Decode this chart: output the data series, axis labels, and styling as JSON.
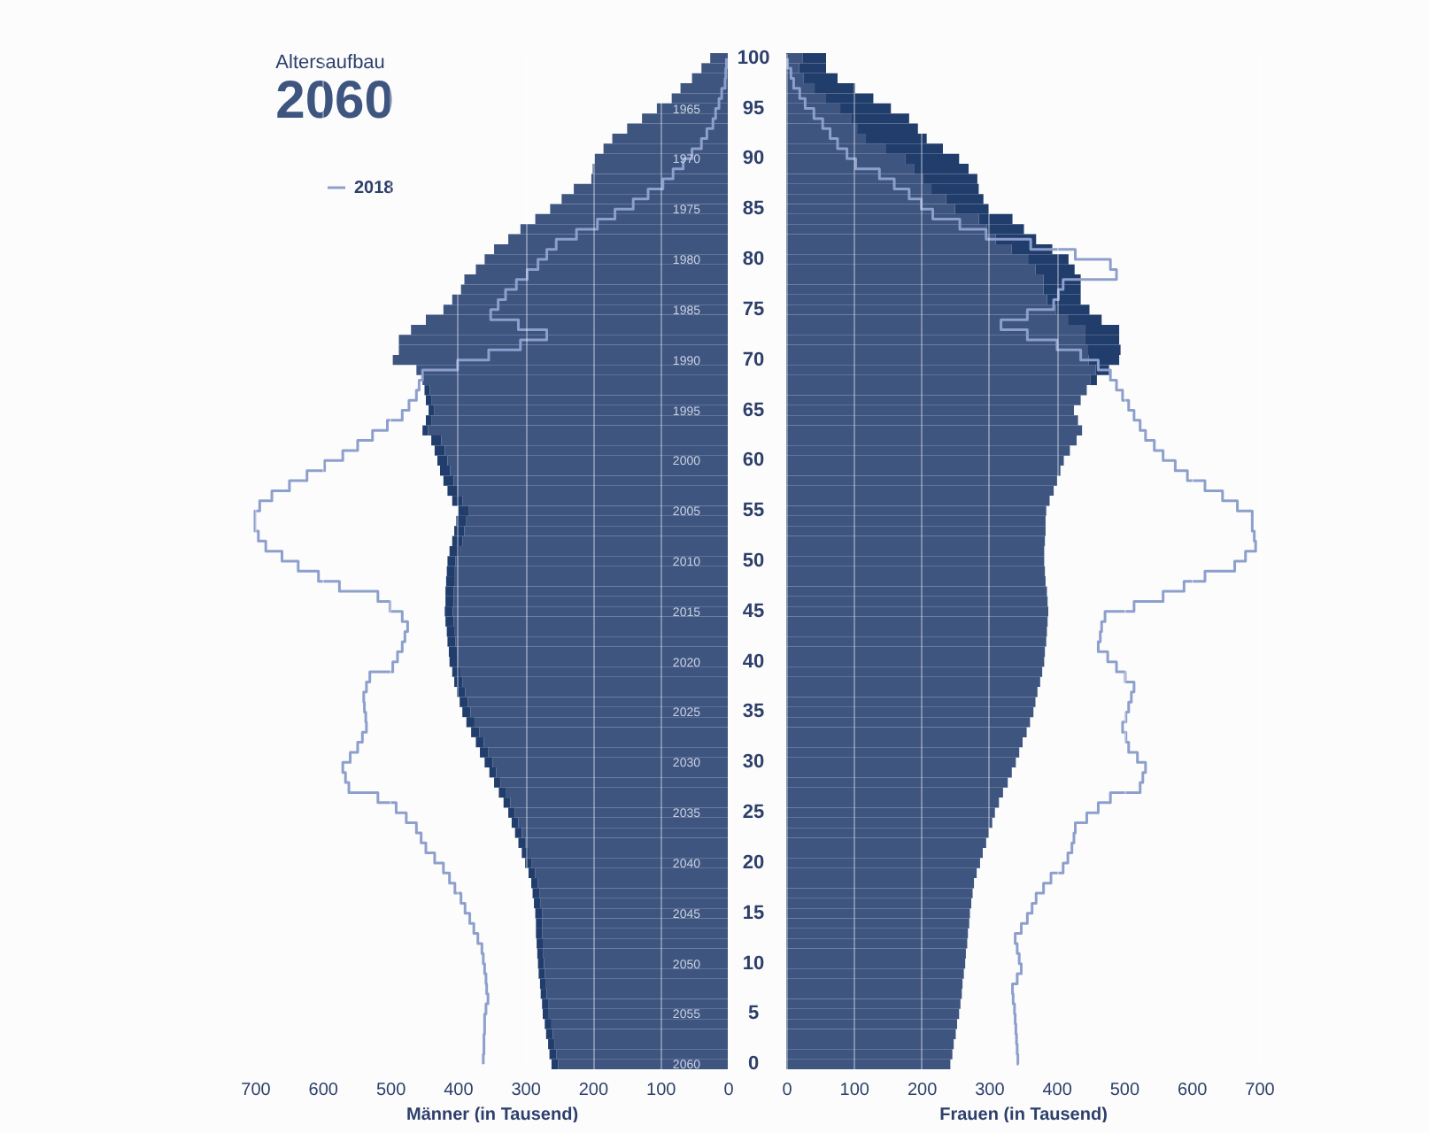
{
  "chart_data": [
    {
      "type": "bar",
      "orientation": "horizontal",
      "stacked": true,
      "title": "Altersaufbau",
      "subtitle": "2060",
      "xlabel": "Männer (in Tausend)",
      "categories": [
        "100",
        null,
        null,
        null,
        null,
        "95",
        null,
        null,
        null,
        null,
        "90",
        null,
        null,
        null,
        null,
        "85",
        null,
        null,
        null,
        null,
        "80",
        null,
        null,
        null,
        null,
        "75",
        null,
        null,
        null,
        null,
        "70",
        null,
        null,
        null,
        null,
        "65",
        null,
        null,
        null,
        null,
        "60",
        null,
        null,
        null,
        null,
        "55",
        null,
        null,
        null,
        null,
        "50",
        null,
        null,
        null,
        null,
        "45",
        null,
        null,
        null,
        null,
        "40",
        null,
        null,
        null,
        null,
        "35",
        null,
        null,
        null,
        null,
        "30",
        null,
        null,
        null,
        null,
        "25",
        null,
        null,
        null,
        null,
        "20",
        null,
        null,
        null,
        null,
        "15",
        null,
        null,
        null,
        null,
        "10",
        null,
        null,
        null,
        null,
        "5",
        null,
        null,
        null,
        null,
        "0"
      ],
      "series": [
        {
          "color": "#3e5580",
          "values": [
            26,
            39,
            53,
            70,
            83,
            105,
            127,
            149,
            171,
            184,
            197,
            200,
            202,
            228,
            246,
            263,
            285,
            307,
            325,
            346,
            360,
            373,
            390,
            395,
            408,
            421,
            447,
            469,
            487,
            487,
            496,
            461,
            452,
            441,
            439,
            435,
            439,
            444,
            424,
            419,
            415,
            411,
            406,
            400,
            393,
            384,
            387,
            390,
            393,
            397,
            403,
            404,
            405,
            406,
            406,
            407,
            406,
            404,
            403,
            401,
            400,
            396,
            393,
            389,
            385,
            381,
            375,
            368,
            361,
            355,
            348,
            343,
            336,
            329,
            322,
            315,
            310,
            305,
            300,
            295,
            290,
            285,
            281,
            279,
            277,
            275,
            275,
            275,
            274,
            273,
            272,
            271,
            269,
            268,
            266,
            265,
            261,
            259,
            256,
            254,
            251
          ]
        },
        {
          "color": "#213d6c",
          "values": [
            null,
            null,
            null,
            null,
            null,
            null,
            null,
            null,
            null,
            null,
            null,
            null,
            null,
            null,
            null,
            null,
            null,
            null,
            null,
            null,
            null,
            null,
            null,
            null,
            null,
            null,
            null,
            null,
            null,
            null,
            null,
            null,
            null,
            8,
            8,
            8,
            8,
            8,
            15,
            15,
            15,
            15,
            15,
            15,
            15,
            15,
            15,
            15,
            15,
            15,
            12,
            12,
            12,
            12,
            12,
            12,
            12,
            12,
            12,
            12,
            12,
            12,
            12,
            12,
            12,
            12,
            12,
            12,
            12,
            12,
            12,
            10,
            10,
            10,
            10,
            10,
            10,
            10,
            10,
            10,
            10,
            10,
            10,
            10,
            10,
            10,
            9,
            9,
            9,
            9,
            9,
            9,
            9,
            9,
            9,
            9,
            10,
            10,
            10,
            10,
            10
          ]
        },
        {
          "name": "2018",
          "type": "step",
          "color": "#8d9fcc",
          "values": [
            2,
            3,
            4,
            9,
            13,
            18,
            22,
            31,
            39,
            53,
            66,
            81,
            96,
            118,
            140,
            167,
            193,
            224,
            254,
            268,
            281,
            297,
            313,
            329,
            340,
            351,
            310,
            268,
            307,
            354,
            400,
            452,
            457,
            461,
            472,
            482,
            504,
            526,
            548,
            570,
            597,
            623,
            649,
            675,
            693,
            700,
            700,
            695,
            684,
            660,
            636,
            606,
            575,
            518,
            500,
            482,
            474,
            478,
            482,
            489,
            496,
            530,
            535,
            539,
            538,
            536,
            535,
            541,
            548,
            559,
            570,
            566,
            561,
            518,
            491,
            476,
            461,
            454,
            447,
            434,
            421,
            412,
            404,
            395,
            389,
            382,
            376,
            370,
            364,
            362,
            360,
            358,
            357,
            355,
            358,
            360,
            360,
            361,
            361,
            362,
            362
          ]
        }
      ],
      "xlim": [
        700,
        0
      ],
      "xticks": [
        0,
        100,
        200,
        300,
        400,
        500,
        600,
        700
      ],
      "y2lim": [
        2060.5,
        1959.5
      ],
      "y2ticks": [
        1965,
        1970,
        1975,
        1980,
        1985,
        1990,
        1995,
        2000,
        2005,
        2010,
        2015,
        2020,
        2025,
        2030,
        2035,
        2040,
        2045,
        2050,
        2055,
        2060
      ],
      "grid": "x",
      "legend": "top left"
    },
    {
      "type": "bar",
      "orientation": "horizontal",
      "stacked": true,
      "xlabel": "Frauen (in Tausend)",
      "categories": [
        "100",
        null,
        null,
        null,
        null,
        "95",
        null,
        null,
        null,
        null,
        "90",
        null,
        null,
        null,
        null,
        "85",
        null,
        null,
        null,
        null,
        "80",
        null,
        null,
        null,
        null,
        "75",
        null,
        null,
        null,
        null,
        "70",
        null,
        null,
        null,
        null,
        "65",
        null,
        null,
        null,
        null,
        "60",
        null,
        null,
        null,
        null,
        "55",
        null,
        null,
        null,
        null,
        "50",
        null,
        null,
        null,
        null,
        "45",
        null,
        null,
        null,
        null,
        "40",
        null,
        null,
        null,
        null,
        "35",
        null,
        null,
        null,
        null,
        "30",
        null,
        null,
        null,
        null,
        "25",
        null,
        null,
        null,
        null,
        "20",
        null,
        null,
        null,
        null,
        "15",
        null,
        null,
        null,
        null,
        "10",
        null,
        null,
        null,
        null,
        "5",
        null,
        null,
        null,
        null,
        "0"
      ],
      "series": [
        {
          "color": "#3e5580",
          "values": [
            24,
            19,
            26,
            42,
            59,
            80,
            97,
            105,
            118,
            147,
            176,
            190,
            203,
            215,
            237,
            250,
            285,
            297,
            310,
            334,
            358,
            369,
            381,
            381,
            386,
            399,
            417,
            443,
            443,
            447,
            448,
            458,
            450,
            445,
            436,
            426,
            432,
            438,
            430,
            420,
            411,
            406,
            401,
            396,
            390,
            385,
            384,
            384,
            383,
            382,
            382,
            383,
            384,
            386,
            387,
            388,
            387,
            386,
            385,
            383,
            382,
            379,
            376,
            372,
            369,
            366,
            361,
            356,
            350,
            345,
            340,
            334,
            328,
            321,
            315,
            309,
            305,
            300,
            296,
            291,
            287,
            282,
            278,
            276,
            274,
            272,
            271,
            269,
            268,
            266,
            265,
            263,
            261,
            260,
            258,
            256,
            253,
            251,
            248,
            246,
            243
          ]
        },
        {
          "color": "#213d6c",
          "values": [
            35,
            40,
            50,
            60,
            70,
            75,
            85,
            90,
            90,
            85,
            80,
            80,
            80,
            70,
            55,
            50,
            50,
            55,
            60,
            60,
            60,
            58,
            55,
            55,
            50,
            50,
            50,
            50,
            50,
            48,
            45,
            20,
            10,
            null,
            null,
            null,
            null,
            null,
            null,
            null,
            null,
            null,
            null,
            null,
            null,
            null,
            null,
            null,
            null,
            null,
            null,
            null,
            null,
            null,
            null,
            null,
            null,
            null,
            null,
            null,
            null,
            null,
            null,
            null,
            null,
            null,
            null,
            null,
            null,
            null,
            null,
            null,
            null,
            null,
            null,
            null,
            null,
            null,
            null,
            null,
            null,
            null,
            null,
            null,
            null,
            null,
            null,
            null,
            null,
            null,
            null,
            null,
            null,
            null,
            null,
            null,
            null,
            null,
            null,
            null,
            null
          ]
        },
        {
          "type": "step",
          "color": "#8d9fcc",
          "values": [
            2,
            7,
            11,
            20,
            28,
            41,
            54,
            65,
            76,
            90,
            103,
            138,
            160,
            182,
            200,
            217,
            257,
            296,
            362,
            428,
            480,
            489,
            410,
            403,
            396,
            357,
            318,
            357,
            401,
            436,
            462,
            480,
            489,
            498,
            507,
            515,
            524,
            532,
            545,
            558,
            576,
            594,
            620,
            646,
            668,
            690,
            690,
            693,
            695,
            680,
            664,
            620,
            589,
            558,
            515,
            472,
            467,
            465,
            462,
            476,
            489,
            502,
            515,
            511,
            507,
            503,
            498,
            503,
            507,
            520,
            532,
            528,
            524,
            480,
            462,
            445,
            428,
            426,
            423,
            417,
            410,
            392,
            381,
            370,
            364,
            357,
            348,
            339,
            342,
            345,
            348,
            342,
            335,
            336,
            338,
            339,
            340,
            341,
            342,
            343,
            344
          ]
        }
      ],
      "xlim": [
        0,
        700
      ],
      "xticks": [
        0,
        100,
        200,
        300,
        400,
        500,
        600,
        700
      ],
      "grid": "x",
      "tick_labels": "x"
    }
  ]
}
